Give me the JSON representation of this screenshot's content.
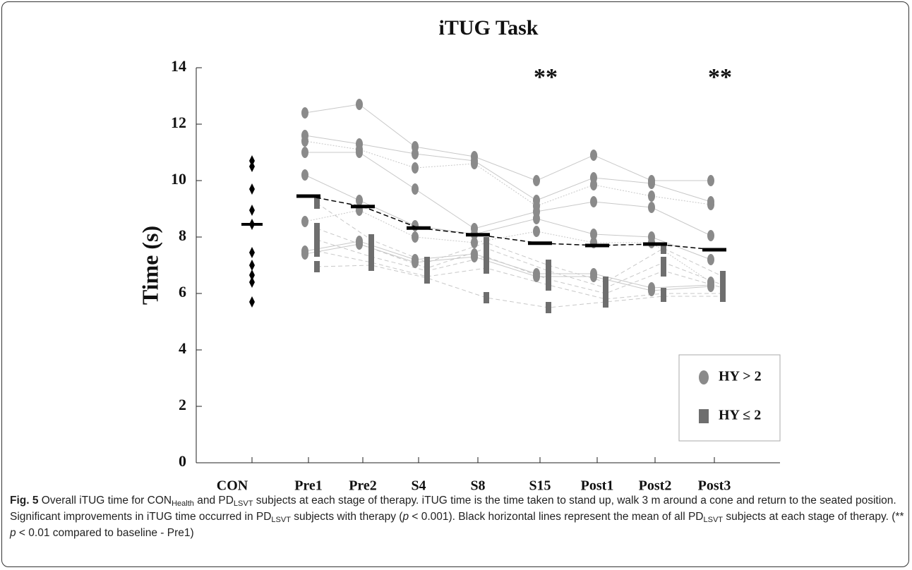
{
  "chart_data": {
    "type": "strip",
    "title": "iTUG Task",
    "y_label": "Time (s)",
    "categories": [
      "CON",
      "Pre1",
      "Pre2",
      "S4",
      "S8",
      "S15",
      "Post1",
      "Post2",
      "Post3"
    ],
    "category_subscripts": [
      "Health",
      null,
      null,
      null,
      null,
      null,
      null,
      null,
      null
    ],
    "ylim": [
      0,
      14
    ],
    "yticks": [
      0,
      2,
      4,
      6,
      8,
      10,
      12,
      14
    ],
    "control": {
      "values": [
        10.7,
        10.5,
        9.7,
        8.95,
        8.45,
        7.45,
        7.0,
        6.65,
        6.4,
        5.7
      ],
      "color": "#000000",
      "mean": 8.45
    },
    "means": [
      9.45,
      9.08,
      8.32,
      8.08,
      7.78,
      7.7,
      7.75,
      7.55
    ],
    "groups": [
      {
        "name": "HY > 2",
        "marker": "circle",
        "color": "#8a8a8a",
        "subjects": [
          [
            12.4,
            12.7,
            11.2,
            10.85,
            10.0,
            10.9,
            10.0,
            10.0
          ],
          [
            11.6,
            11.3,
            10.95,
            10.7,
            9.3,
            10.1,
            9.9,
            9.25
          ],
          [
            11.4,
            11.1,
            10.45,
            10.6,
            9.1,
            9.85,
            9.45,
            9.15
          ],
          [
            11.0,
            11.0,
            9.7,
            8.3,
            8.9,
            9.25,
            9.05,
            8.05
          ],
          [
            10.2,
            9.3,
            8.4,
            8.1,
            8.65,
            8.1,
            8.0,
            7.2
          ],
          [
            8.55,
            8.95,
            8.0,
            7.8,
            8.2,
            7.8,
            7.8,
            6.4
          ],
          [
            7.5,
            7.85,
            7.2,
            7.4,
            6.7,
            6.7,
            6.2,
            6.3
          ],
          [
            7.4,
            7.75,
            7.1,
            7.3,
            6.6,
            6.6,
            6.1,
            6.25
          ]
        ]
      },
      {
        "name": "HY ≤ 2",
        "marker": "square",
        "color": "#6e6e6e",
        "subjects": [
          [
            9.2,
            7.9,
            7.1,
            7.8,
            7.0,
            6.4,
            7.6,
            6.6
          ],
          [
            8.3,
            7.6,
            6.9,
            7.6,
            6.8,
            6.2,
            7.1,
            6.3
          ],
          [
            7.9,
            7.3,
            6.8,
            7.3,
            6.5,
            6.0,
            6.8,
            6.2
          ],
          [
            7.5,
            7.1,
            6.6,
            6.9,
            6.3,
            5.8,
            6.0,
            6.0
          ],
          [
            6.95,
            7.0,
            6.55,
            5.85,
            5.5,
            5.7,
            5.9,
            5.9
          ]
        ]
      }
    ],
    "annotations": [
      {
        "text": "**",
        "category": 5
      },
      {
        "text": "**",
        "category": 8
      }
    ],
    "legend": "lower right"
  },
  "caption": [
    {
      "text": "Fig. 5",
      "kind": "bold"
    },
    {
      "text": " Overall iTUG time for CON",
      "kind": "normal"
    },
    {
      "text": "Health",
      "kind": "sub"
    },
    {
      "text": " and PD",
      "kind": "normal"
    },
    {
      "text": "LSVT",
      "kind": "sub"
    },
    {
      "text": " subjects at each stage of therapy. iTUG time is the time taken to stand up, walk 3 m around a cone and return to the seated position. Significant improvements in iTUG time occurred in PD",
      "kind": "normal"
    },
    {
      "text": "LSVT",
      "kind": "sub"
    },
    {
      "text": " subjects with therapy (",
      "kind": "normal"
    },
    {
      "text": "p",
      "kind": "italic"
    },
    {
      "text": " < 0.001). Black horizontal lines represent the mean of all PD",
      "kind": "normal"
    },
    {
      "text": "LSVT",
      "kind": "sub"
    },
    {
      "text": " subjects at each stage of therapy. (** ",
      "kind": "normal"
    },
    {
      "text": "p",
      "kind": "italic"
    },
    {
      "text": " < 0.01 compared to baseline - Pre1)",
      "kind": "normal"
    }
  ]
}
